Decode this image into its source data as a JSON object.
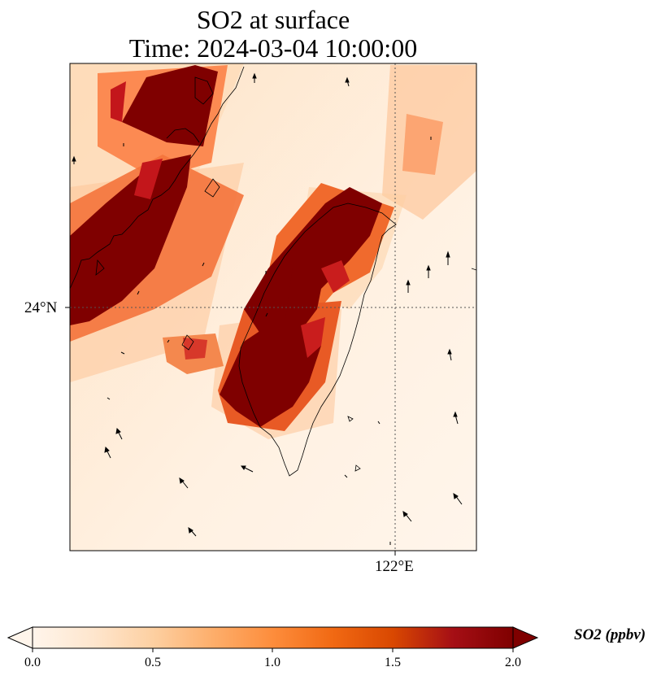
{
  "title_line1": "SO2 at surface",
  "title_line2": "Time: 2024-03-04 10:00:00",
  "lat_tick_label": "24°N",
  "lon_tick_label": "122°E",
  "colorbar": {
    "label": "SO2 (ppbv)",
    "ticks": [
      "0.0",
      "0.5",
      "1.0",
      "1.5",
      "2.0"
    ],
    "min": 0.0,
    "max": 2.0,
    "extend": "both",
    "colormap": [
      "#fff5eb",
      "#fee6ce",
      "#fdd0a2",
      "#fdae6b",
      "#fd8d3c",
      "#f16913",
      "#d94801",
      "#a50f15",
      "#7f0000"
    ]
  },
  "map": {
    "field": "SO2",
    "units": "ppbv",
    "high_zones": [
      "Taiwan west coast plume",
      "China coast plume (Fujian)"
    ],
    "gridlines": [
      "24°N",
      "122°E"
    ],
    "wind_vectors": true
  }
}
